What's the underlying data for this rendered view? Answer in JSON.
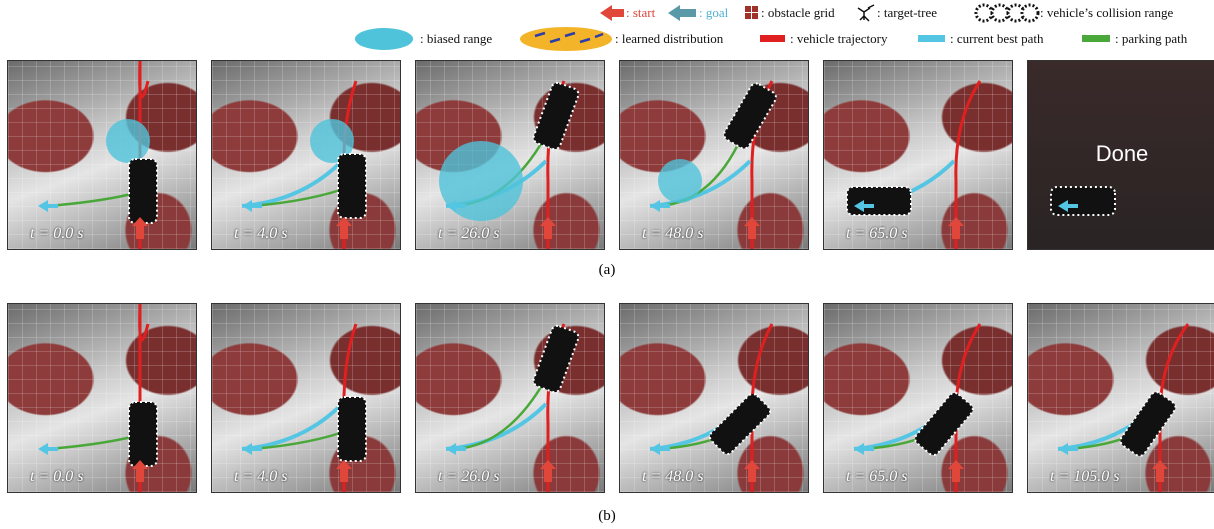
{
  "legend": {
    "items": [
      {
        "label": ": start"
      },
      {
        "label": ": goal"
      },
      {
        "label": ": obstacle grid"
      },
      {
        "label": ": target-tree"
      },
      {
        "label": ": vehicle’s collision range"
      },
      {
        "label": ": biased range"
      },
      {
        "label": ": learned distribution"
      },
      {
        "label": ": vehicle trajectory"
      },
      {
        "label": ": current best path"
      },
      {
        "label": ": parking path"
      }
    ]
  },
  "rows": [
    {
      "caption": "(a)",
      "panels": [
        {
          "time": "t = 0.0 s"
        },
        {
          "time": "t = 4.0 s"
        },
        {
          "time": "t = 26.0 s"
        },
        {
          "time": "t = 48.0 s"
        },
        {
          "time": "t = 65.0 s"
        },
        {
          "overlay": "Done"
        }
      ]
    },
    {
      "caption": "(b)",
      "panels": [
        {
          "time": "t = 0.0 s"
        },
        {
          "time": "t = 4.0 s"
        },
        {
          "time": "t = 26.0 s"
        },
        {
          "time": "t = 48.0 s"
        },
        {
          "time": "t = 65.0 s"
        },
        {
          "time": "t = 105.0 s"
        }
      ]
    }
  ]
}
